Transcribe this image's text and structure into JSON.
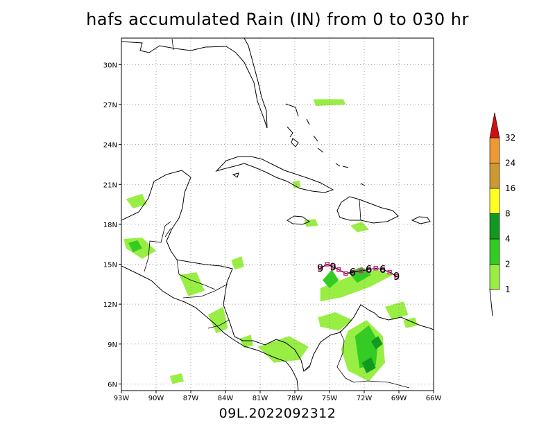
{
  "title": "hafs accumulated Rain (IN) from 0 to 030 hr",
  "subtitle": "09L.2022092312",
  "map": {
    "lon_range": [
      -93,
      -66
    ],
    "lat_range": [
      5.5,
      32
    ],
    "grid": true,
    "lon_ticks": [
      {
        "value": -93,
        "label": "93W"
      },
      {
        "value": -90,
        "label": "90W"
      },
      {
        "value": -87,
        "label": "87W"
      },
      {
        "value": -84,
        "label": "84W"
      },
      {
        "value": -81,
        "label": "81W"
      },
      {
        "value": -78,
        "label": "78W"
      },
      {
        "value": -75,
        "label": "75W"
      },
      {
        "value": -72,
        "label": "72W"
      },
      {
        "value": -69,
        "label": "69W"
      },
      {
        "value": -66,
        "label": "66W"
      }
    ],
    "lat_ticks": [
      {
        "value": 6,
        "label": "6N"
      },
      {
        "value": 9,
        "label": "9N"
      },
      {
        "value": 12,
        "label": "12N"
      },
      {
        "value": 15,
        "label": "15N"
      },
      {
        "value": 18,
        "label": "18N"
      },
      {
        "value": 21,
        "label": "21N"
      },
      {
        "value": 24,
        "label": "24N"
      },
      {
        "value": 27,
        "label": "27N"
      },
      {
        "value": 30,
        "label": "30N"
      }
    ]
  },
  "legend": {
    "bins": [
      {
        "min": 1,
        "label": "1",
        "color": "#99ee44"
      },
      {
        "min": 2,
        "label": "2",
        "color": "#33cc22"
      },
      {
        "min": 4,
        "label": "4",
        "color": "#119922"
      },
      {
        "min": 8,
        "label": "8",
        "color": "#ffff22"
      },
      {
        "min": 16,
        "label": "16",
        "color": "#cc9933"
      },
      {
        "min": 24,
        "label": "24",
        "color": "#ee9933"
      },
      {
        "min": 32,
        "label": "32",
        "color": "#cc1111"
      }
    ]
  },
  "track": {
    "color": "#dd2288",
    "points": [
      {
        "lon": -75.8,
        "lat": 14.7,
        "label": "9"
      },
      {
        "lon": -75.2,
        "lat": 15.0
      },
      {
        "lon": -74.7,
        "lat": 14.8,
        "label": "9"
      },
      {
        "lon": -74.2,
        "lat": 14.6
      },
      {
        "lon": -73.6,
        "lat": 14.3
      },
      {
        "lon": -73.0,
        "lat": 14.4,
        "label": "6"
      },
      {
        "lon": -72.3,
        "lat": 14.5
      },
      {
        "lon": -71.6,
        "lat": 14.6,
        "label": "6"
      },
      {
        "lon": -71.0,
        "lat": 14.7
      },
      {
        "lon": -70.4,
        "lat": 14.6,
        "label": "6"
      },
      {
        "lon": -69.8,
        "lat": 14.4
      },
      {
        "lon": -69.2,
        "lat": 14.1,
        "label": "9"
      }
    ]
  },
  "rain_regions": [
    {
      "category": 1,
      "points": [
        [
          -75.8,
          13.2
        ],
        [
          -73.5,
          14.0
        ],
        [
          -71.0,
          14.6
        ],
        [
          -69.5,
          14.2
        ],
        [
          -71.5,
          13.3
        ],
        [
          -74.0,
          12.5
        ],
        [
          -75.8,
          12.2
        ]
      ]
    },
    {
      "category": 1,
      "points": [
        [
          -76.0,
          11.0
        ],
        [
          -74.5,
          11.4
        ],
        [
          -73.0,
          10.8
        ],
        [
          -74.2,
          10.0
        ],
        [
          -75.8,
          10.3
        ]
      ]
    },
    {
      "category": 1,
      "points": [
        [
          -73.4,
          10.0
        ],
        [
          -71.8,
          10.8
        ],
        [
          -70.4,
          9.6
        ],
        [
          -70.2,
          7.6
        ],
        [
          -71.6,
          6.2
        ],
        [
          -73.4,
          7.0
        ],
        [
          -74.0,
          8.6
        ]
      ]
    },
    {
      "category": 2,
      "points": [
        [
          -72.8,
          9.6
        ],
        [
          -71.6,
          10.4
        ],
        [
          -70.8,
          9.2
        ],
        [
          -71.0,
          7.4
        ],
        [
          -72.4,
          7.2
        ]
      ]
    },
    {
      "category": 2,
      "points": [
        [
          -75.6,
          13.8
        ],
        [
          -74.8,
          14.6
        ],
        [
          -74.2,
          13.8
        ],
        [
          -75.0,
          13.2
        ]
      ]
    },
    {
      "category": 2,
      "points": [
        [
          -73.4,
          14.4
        ],
        [
          -72.2,
          14.8
        ],
        [
          -71.4,
          14.2
        ],
        [
          -72.6,
          13.6
        ]
      ]
    },
    {
      "category": 4,
      "points": [
        [
          -72.2,
          7.6
        ],
        [
          -71.4,
          8.0
        ],
        [
          -71.0,
          7.2
        ],
        [
          -71.8,
          6.8
        ]
      ]
    },
    {
      "category": 4,
      "points": [
        [
          -71.4,
          9.2
        ],
        [
          -70.8,
          9.6
        ],
        [
          -70.4,
          9.0
        ],
        [
          -71.0,
          8.6
        ]
      ]
    },
    {
      "category": 1,
      "points": [
        [
          -92.8,
          16.9
        ],
        [
          -91.2,
          17.0
        ],
        [
          -90.0,
          16.0
        ],
        [
          -91.2,
          15.4
        ],
        [
          -92.6,
          16.2
        ]
      ]
    },
    {
      "category": 2,
      "points": [
        [
          -92.4,
          16.6
        ],
        [
          -91.6,
          16.8
        ],
        [
          -91.2,
          16.2
        ],
        [
          -92.0,
          15.9
        ]
      ]
    },
    {
      "category": 1,
      "points": [
        [
          -88.0,
          14.2
        ],
        [
          -86.5,
          14.4
        ],
        [
          -85.8,
          13.0
        ],
        [
          -87.2,
          12.6
        ]
      ]
    },
    {
      "category": 1,
      "points": [
        [
          -85.5,
          11.2
        ],
        [
          -84.2,
          11.8
        ],
        [
          -83.8,
          10.2
        ],
        [
          -84.8,
          9.8
        ]
      ]
    },
    {
      "category": 1,
      "points": [
        [
          -83.5,
          15.3
        ],
        [
          -82.6,
          15.6
        ],
        [
          -82.4,
          14.8
        ],
        [
          -83.2,
          14.6
        ]
      ]
    },
    {
      "category": 1,
      "points": [
        [
          -81.2,
          8.8
        ],
        [
          -78.5,
          9.6
        ],
        [
          -76.8,
          8.8
        ],
        [
          -77.6,
          7.8
        ],
        [
          -79.8,
          7.6
        ]
      ]
    },
    {
      "category": 1,
      "points": [
        [
          -82.8,
          9.4
        ],
        [
          -81.8,
          9.7
        ],
        [
          -81.6,
          8.9
        ],
        [
          -82.4,
          8.7
        ]
      ]
    },
    {
      "category": 1,
      "points": [
        [
          -92.6,
          19.9
        ],
        [
          -91.2,
          20.3
        ],
        [
          -90.8,
          19.5
        ],
        [
          -92.0,
          19.2
        ]
      ]
    },
    {
      "category": 1,
      "points": [
        [
          -73.2,
          17.9
        ],
        [
          -72.2,
          18.2
        ],
        [
          -71.6,
          17.6
        ],
        [
          -72.6,
          17.4
        ]
      ]
    },
    {
      "category": 1,
      "points": [
        [
          -76.4,
          27.4
        ],
        [
          -73.8,
          27.4
        ],
        [
          -73.6,
          27.0
        ],
        [
          -76.2,
          26.9
        ]
      ]
    },
    {
      "category": 1,
      "points": [
        [
          -77.2,
          18.3
        ],
        [
          -76.2,
          18.4
        ],
        [
          -76.0,
          17.9
        ],
        [
          -77.0,
          17.8
        ]
      ]
    },
    {
      "category": 1,
      "points": [
        [
          -78.2,
          21.2
        ],
        [
          -77.6,
          21.3
        ],
        [
          -77.5,
          20.8
        ],
        [
          -78.1,
          20.7
        ]
      ]
    },
    {
      "category": 1,
      "points": [
        [
          -70.2,
          11.8
        ],
        [
          -68.6,
          12.2
        ],
        [
          -68.2,
          11.2
        ],
        [
          -69.6,
          10.8
        ]
      ]
    },
    {
      "category": 1,
      "points": [
        [
          -68.6,
          10.8
        ],
        [
          -67.6,
          11.0
        ],
        [
          -67.4,
          10.4
        ],
        [
          -68.4,
          10.2
        ]
      ]
    },
    {
      "category": 1,
      "points": [
        [
          -88.8,
          6.6
        ],
        [
          -87.8,
          6.8
        ],
        [
          -87.6,
          6.2
        ],
        [
          -88.6,
          6.0
        ]
      ]
    }
  ]
}
